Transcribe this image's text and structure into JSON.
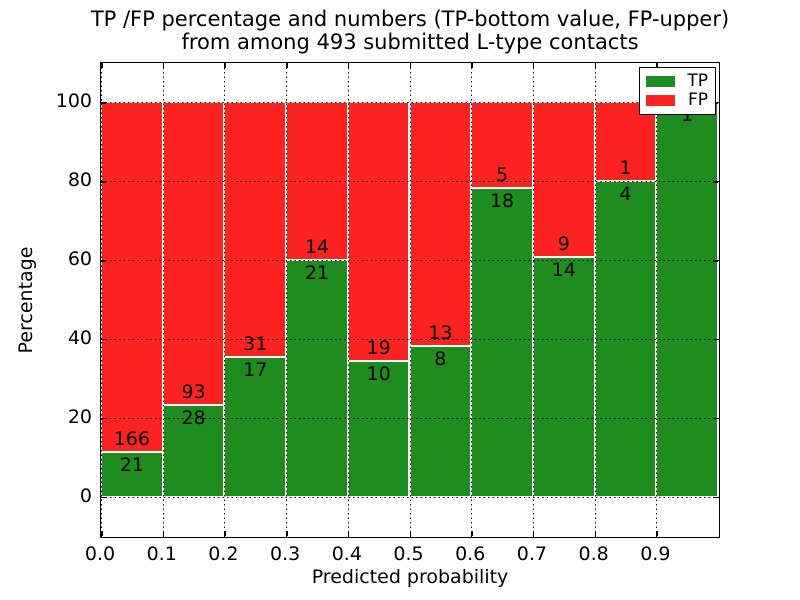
{
  "figure": {
    "title_line1": "TP /FP percentage and numbers (TP-bottom value, FP-upper)",
    "title_line2": "from among 493 submitted L-type contacts"
  },
  "chart_data": {
    "type": "bar",
    "stacked": true,
    "title": "TP /FP percentage and numbers (TP-bottom value, FP-upper) from among 493 submitted L-type contacts",
    "xlabel": "Predicted probability",
    "ylabel": "Percentage",
    "total_contacts": 493,
    "bin_starts": [
      0.0,
      0.1,
      0.2,
      0.3,
      0.4,
      0.5,
      0.6,
      0.7,
      0.8,
      0.9
    ],
    "bin_width": 0.1,
    "categories": [
      "0.0-0.1",
      "0.1-0.2",
      "0.2-0.3",
      "0.3-0.4",
      "0.4-0.5",
      "0.5-0.6",
      "0.6-0.7",
      "0.7-0.8",
      "0.8-0.9",
      "0.9-1.0"
    ],
    "series": [
      {
        "name": "TP",
        "color": "#1e8c1e",
        "counts": [
          21,
          28,
          17,
          21,
          10,
          8,
          18,
          14,
          4,
          1
        ],
        "percent": [
          11.23,
          23.14,
          35.42,
          60.0,
          34.48,
          38.1,
          78.26,
          60.87,
          80.0,
          100.0
        ]
      },
      {
        "name": "FP",
        "color": "#fb2222",
        "counts": [
          166,
          93,
          31,
          14,
          19,
          13,
          5,
          9,
          1,
          0
        ],
        "percent": [
          88.77,
          76.86,
          64.58,
          40.0,
          65.52,
          61.9,
          21.74,
          39.13,
          20.0,
          0.0
        ]
      }
    ],
    "xticks": [
      "0.0",
      "0.1",
      "0.2",
      "0.3",
      "0.4",
      "0.5",
      "0.6",
      "0.7",
      "0.8",
      "0.9"
    ],
    "yticks": [
      "0",
      "20",
      "40",
      "60",
      "80",
      "100"
    ],
    "xlim": [
      0.0,
      1.0
    ],
    "ylim": [
      -10,
      110
    ],
    "grid": true,
    "grid_style": "dotted",
    "legend": {
      "position": "upper right",
      "entries": [
        {
          "label": "TP",
          "color": "#1e8c1e"
        },
        {
          "label": "FP",
          "color": "#fb2222"
        }
      ]
    }
  }
}
